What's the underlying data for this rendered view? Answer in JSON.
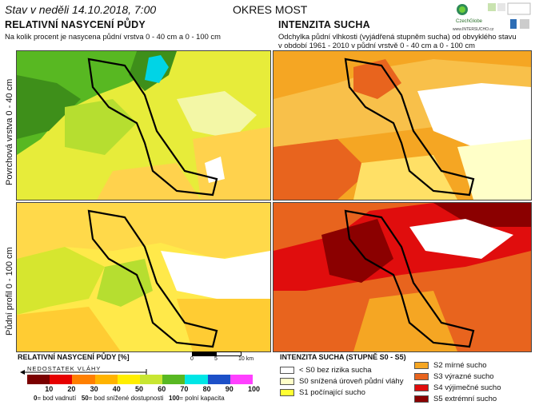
{
  "header": {
    "state": "Stav v neděli 14.10.2018, 7:00",
    "district": "OKRES MOST",
    "logos": [
      "CzechGlobe",
      "www.INTERSUCHO.cz"
    ]
  },
  "left": {
    "title": "RELATIVNÍ NASYCENÍ PŮDY",
    "subtitle": "Na kolik procent je nasycena půdní vrstva 0 - 40 cm a 0 - 100 cm"
  },
  "right": {
    "title": "INTENZITA SUCHA",
    "subtitle_line1": "Odchylka půdní vlhkosti (vyjádřená stupněm sucha) od obvyklého stavu",
    "subtitle_line2": "v období 1961 - 2010 v půdní vrstvě 0 - 40 cm a 0 - 100 cm"
  },
  "rows": {
    "top": "Povrchová vrstva 0 - 40 cm",
    "bottom": "Půdní profil 0 - 100 cm"
  },
  "scalebar": {
    "labels": [
      "0",
      "5",
      "10 km"
    ]
  },
  "legend_left": {
    "title": "RELATIVNÍ NASYCENÍ PŮDY [%]",
    "deficit": "NEDOSTATEK VLÁHY",
    "colors": [
      "#7a0000",
      "#e60000",
      "#ff7f00",
      "#ffb300",
      "#ffee00",
      "#c8e632",
      "#58b822",
      "#00e6e6",
      "#1d50c8",
      "#ff40ff"
    ],
    "ticks": [
      "10",
      "20",
      "30",
      "40",
      "50",
      "60",
      "70",
      "80",
      "90",
      "100"
    ],
    "notes": [
      "0",
      "= bod vadnutí",
      "50",
      "= bod snížené dostupnosti",
      "100",
      "= polní kapacita"
    ]
  },
  "legend_right": {
    "title": "INTENZITA SUCHA (STUPNĚ S0 - S5)",
    "items": [
      {
        "label": "< S0 bez rizika sucha",
        "color": "#ffffff"
      },
      {
        "label": "S0 snížená úroveň půdní vláhy",
        "color": "#ffffc8"
      },
      {
        "label": "S1 počínající sucho",
        "color": "#ffff33"
      },
      {
        "label": "S2 mírné sucho",
        "color": "#f5a623"
      },
      {
        "label": "S3 výrazné sucho",
        "color": "#e8641e"
      },
      {
        "label": "S4 výjimečné sucho",
        "color": "#e00d0d"
      },
      {
        "label": "S5 extrémní sucho",
        "color": "#8b0000"
      }
    ]
  }
}
